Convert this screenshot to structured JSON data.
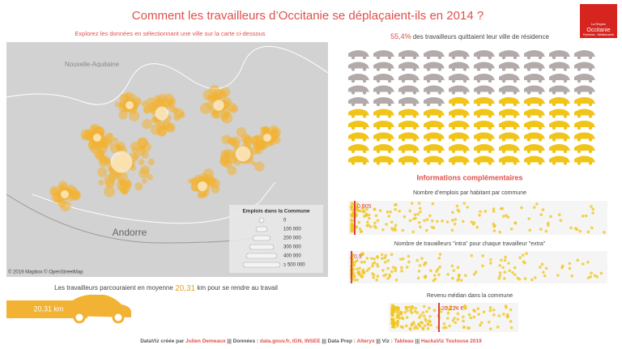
{
  "header": {
    "title": "Comment les travailleurs d’Occitanie se déplaçaient-ils en 2014 ?",
    "logo": [
      "La Région",
      "Occitanie",
      "Pyrénées · Méditerranée"
    ]
  },
  "map": {
    "instruction": "Explorez les données en sélectionnant une ville sur la carte ci-dessous",
    "labels": [
      "Nouvelle-Aquitaine",
      "Andorre"
    ],
    "legend_title": "Emplois dans la Commune",
    "legend_items": [
      "0",
      "100 000",
      "200 000",
      "300 000",
      "400 000",
      "≥ 500 000"
    ],
    "credit": "© 2019 Mapbox © OpenStreetMap"
  },
  "cars": {
    "share": "55,4%",
    "text": " des travailleurs quittaient leur ville de résidence",
    "value": 55.4
  },
  "info": {
    "title": "Informations complémentaires",
    "strips": [
      {
        "title": "Nombre d’emplois par habitant par commune",
        "highlight": "0,005"
      },
      {
        "title": "Nombre de travailleurs \"intra\" pour chaque travailleur \"extra\"",
        "highlight": "0,9"
      },
      {
        "title": "Revenu médian dans la commune",
        "highlight": "20 224 €"
      }
    ]
  },
  "distance": {
    "before": "Les travailleurs parcouraient en moyenne ",
    "value": "20,31",
    "after": " km pour se rendre au travail",
    "bar_label": "20,31 km"
  },
  "footer": [
    {
      "text": "DataViz créée par ",
      "color": "#555"
    },
    {
      "text": "Julien Demeaux",
      "color": "#e0504a"
    },
    {
      "text": " ||| Données : ",
      "color": "#555"
    },
    {
      "text": "data.gouv.fr, IGN, INSEE",
      "color": "#e0504a"
    },
    {
      "text": " ||| Data Prep : ",
      "color": "#555"
    },
    {
      "text": "Alteryx",
      "color": "#e0504a"
    },
    {
      "text": " ||| Viz : ",
      "color": "#555"
    },
    {
      "text": "Tableau",
      "color": "#e0504a"
    },
    {
      "text": " ||| ",
      "color": "#555"
    },
    {
      "text": "HackaViz Toulouse 2019",
      "color": "#e0504a"
    }
  ]
}
